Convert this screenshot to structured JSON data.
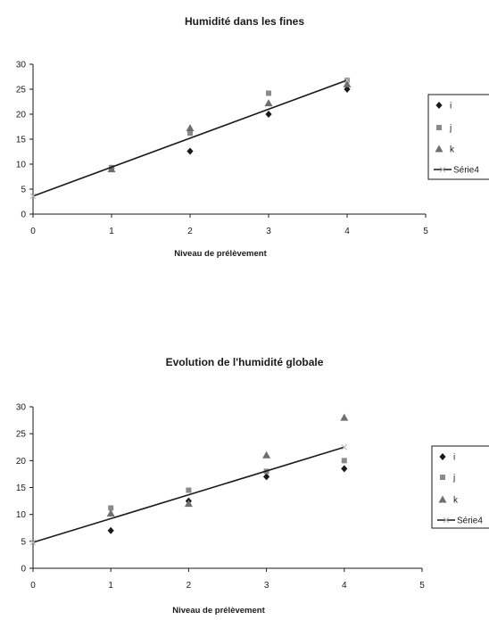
{
  "chart_data": [
    {
      "type": "scatter",
      "title": "Humidité dans les fines",
      "xlabel": "Niveau de prélèvement",
      "ylabel": "",
      "xlim": [
        0,
        5
      ],
      "ylim": [
        0,
        30
      ],
      "xticks": [
        0,
        1,
        2,
        3,
        4,
        5
      ],
      "yticks": [
        0,
        5,
        10,
        15,
        20,
        25,
        30
      ],
      "grid": false,
      "legend_position": "right",
      "series": [
        {
          "name": "i",
          "marker": "diamond",
          "color": "#1a1a1a",
          "x": [
            1,
            2,
            3,
            4
          ],
          "y": [
            9.2,
            12.6,
            20,
            25
          ]
        },
        {
          "name": "j",
          "marker": "square",
          "color": "#8a8a8a",
          "x": [
            1,
            2,
            3,
            4
          ],
          "y": [
            9.3,
            16.2,
            24.2,
            26.8
          ]
        },
        {
          "name": "k",
          "marker": "triangle",
          "color": "#6e6e6e",
          "x": [
            1,
            2,
            3,
            4
          ],
          "y": [
            9.0,
            17.2,
            22.2,
            26.0
          ]
        },
        {
          "name": "Série4",
          "marker": "line",
          "color": "#1a1a1a",
          "x": [
            0,
            4
          ],
          "y": [
            3.6,
            26.8
          ]
        }
      ]
    },
    {
      "type": "scatter",
      "title": "Evolution de l'humidité globale",
      "xlabel": "Niveau de prélèvement",
      "ylabel": "",
      "xlim": [
        0,
        5
      ],
      "ylim": [
        0,
        30
      ],
      "xticks": [
        0,
        1,
        2,
        3,
        4,
        5
      ],
      "yticks": [
        0,
        5,
        10,
        15,
        20,
        25,
        30
      ],
      "grid": false,
      "legend_position": "right",
      "series": [
        {
          "name": "i",
          "marker": "diamond",
          "color": "#1a1a1a",
          "x": [
            1,
            2,
            3,
            4
          ],
          "y": [
            7.0,
            12.5,
            17.0,
            18.5
          ]
        },
        {
          "name": "j",
          "marker": "square",
          "color": "#8a8a8a",
          "x": [
            1,
            2,
            3,
            4
          ],
          "y": [
            11.2,
            14.5,
            18.0,
            20.0
          ]
        },
        {
          "name": "k",
          "marker": "triangle",
          "color": "#6e6e6e",
          "x": [
            1,
            2,
            3,
            4
          ],
          "y": [
            10.2,
            12.0,
            21.0,
            28.0
          ]
        },
        {
          "name": "Série4",
          "marker": "line",
          "color": "#1a1a1a",
          "x": [
            0,
            4
          ],
          "y": [
            4.8,
            22.5
          ]
        }
      ]
    }
  ]
}
